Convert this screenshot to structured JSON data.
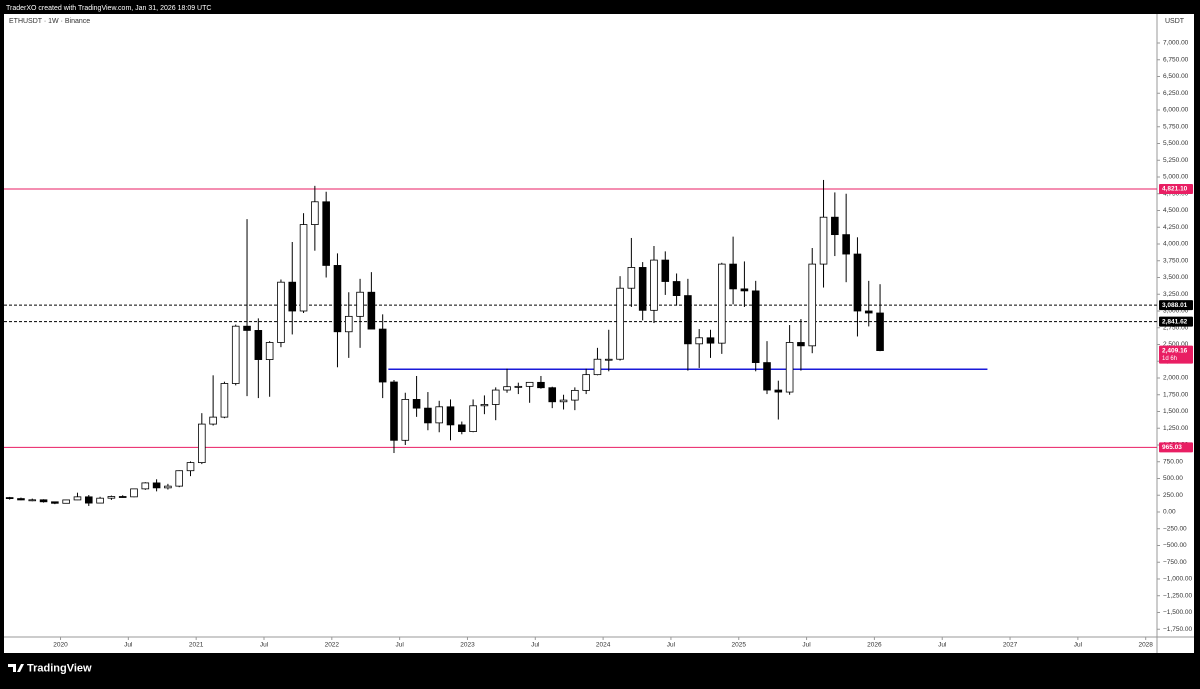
{
  "header": "TraderXO created with TradingView.com, Jan 31, 2026 18:09 UTC",
  "brand": "TradingView",
  "chart_data": {
    "type": "candlestick",
    "title": "ETHUSDT · 1W · Binance",
    "currency": "USDT",
    "up_color": "#ffffff",
    "down_color": "#000000",
    "wick_color": "#000000",
    "xlim": [
      "2019-08",
      "2028-02"
    ],
    "xticks": [
      {
        "value": "2020-01",
        "label": "2020"
      },
      {
        "value": "2020-07",
        "label": "Jul"
      },
      {
        "value": "2021-01",
        "label": "2021"
      },
      {
        "value": "2021-07",
        "label": "Jul"
      },
      {
        "value": "2022-01",
        "label": "2022"
      },
      {
        "value": "2022-07",
        "label": "Jul"
      },
      {
        "value": "2023-01",
        "label": "2023"
      },
      {
        "value": "2023-07",
        "label": "Jul"
      },
      {
        "value": "2024-01",
        "label": "2024"
      },
      {
        "value": "2024-07",
        "label": "Jul"
      },
      {
        "value": "2025-01",
        "label": "2025"
      },
      {
        "value": "2025-07",
        "label": "Jul"
      },
      {
        "value": "2026-01",
        "label": "2026"
      },
      {
        "value": "2026-07",
        "label": "Jul"
      },
      {
        "value": "2027-01",
        "label": "2027"
      },
      {
        "value": "2027-07",
        "label": "Jul"
      },
      {
        "value": "2028-01",
        "label": "2028"
      }
    ],
    "ylim": [
      -1866,
      7433
    ],
    "yticks": [
      {
        "value": 7000,
        "label": "7,000.00"
      },
      {
        "value": 6750,
        "label": "6,750.00"
      },
      {
        "value": 6500,
        "label": "6,500.00"
      },
      {
        "value": 6250,
        "label": "6,250.00"
      },
      {
        "value": 6000,
        "label": "6,000.00"
      },
      {
        "value": 5750,
        "label": "5,750.00"
      },
      {
        "value": 5500,
        "label": "5,500.00"
      },
      {
        "value": 5250,
        "label": "5,250.00"
      },
      {
        "value": 5000,
        "label": "5,000.00"
      },
      {
        "value": 4750,
        "label": "4,750.00"
      },
      {
        "value": 4500,
        "label": "4,500.00"
      },
      {
        "value": 4250,
        "label": "4,250.00"
      },
      {
        "value": 4000,
        "label": "4,000.00"
      },
      {
        "value": 3750,
        "label": "3,750.00"
      },
      {
        "value": 3500,
        "label": "3,500.00"
      },
      {
        "value": 3250,
        "label": "3,250.00"
      },
      {
        "value": 3000,
        "label": "3,000.00"
      },
      {
        "value": 2750,
        "label": "2,750.00"
      },
      {
        "value": 2500,
        "label": "2,500.00"
      },
      {
        "value": 2250,
        "label": "2,250.00"
      },
      {
        "value": 2000,
        "label": "2,000.00"
      },
      {
        "value": 1750,
        "label": "1,750.00"
      },
      {
        "value": 1500,
        "label": "1,500.00"
      },
      {
        "value": 1250,
        "label": "1,250.00"
      },
      {
        "value": 1000,
        "label": "1,000.00"
      },
      {
        "value": 750,
        "label": "750.00"
      },
      {
        "value": 500,
        "label": "500.00"
      },
      {
        "value": 250,
        "label": "250.00"
      },
      {
        "value": 0,
        "label": "0.00"
      },
      {
        "value": -250,
        "label": "−250.00"
      },
      {
        "value": -500,
        "label": "−500.00"
      },
      {
        "value": -750,
        "label": "−750.00"
      },
      {
        "value": -1000,
        "label": "−1,000.00"
      },
      {
        "value": -1250,
        "label": "−1,250.00"
      },
      {
        "value": -1500,
        "label": "−1,500.00"
      },
      {
        "value": -1750,
        "label": "−1,750.00"
      }
    ],
    "x": [
      "2019-08",
      "2019-09",
      "2019-10",
      "2019-11",
      "2019-12",
      "2020-01",
      "2020-02",
      "2020-03",
      "2020-04",
      "2020-05",
      "2020-06",
      "2020-07",
      "2020-08",
      "2020-09",
      "2020-10",
      "2020-11",
      "2020-12",
      "2021-01",
      "2021-02",
      "2021-03",
      "2021-04",
      "2021-05",
      "2021-06",
      "2021-07",
      "2021-08",
      "2021-09",
      "2021-10",
      "2021-11",
      "2021-12",
      "2022-01",
      "2022-02",
      "2022-03",
      "2022-04",
      "2022-05",
      "2022-06",
      "2022-07",
      "2022-08",
      "2022-09",
      "2022-10",
      "2022-11",
      "2022-12",
      "2023-01",
      "2023-02",
      "2023-03",
      "2023-04",
      "2023-05",
      "2023-06",
      "2023-07",
      "2023-08",
      "2023-09",
      "2023-10",
      "2023-11",
      "2023-12",
      "2024-01",
      "2024-02",
      "2024-03",
      "2024-04",
      "2024-05",
      "2024-06",
      "2024-07",
      "2024-08",
      "2024-09",
      "2024-10",
      "2024-11",
      "2024-12",
      "2025-01",
      "2025-02",
      "2025-03",
      "2025-04",
      "2025-05",
      "2025-06",
      "2025-07",
      "2025-08",
      "2025-09",
      "2025-10",
      "2025-11",
      "2025-12",
      "2026-01"
    ],
    "open": [
      215,
      200,
      180,
      182,
      152,
      130,
      180,
      226,
      133,
      206,
      231,
      226,
      345,
      434,
      360,
      386,
      616,
      737,
      1312,
      1416,
      1918,
      2773,
      2710,
      2275,
      2530,
      3430,
      3000,
      4290,
      4630,
      3680,
      2690,
      2920,
      3280,
      2730,
      1940,
      1070,
      1680,
      1550,
      1330,
      1570,
      1300,
      1200,
      1585,
      1605,
      1820,
      1870,
      1875,
      1935,
      1855,
      1645,
      1670,
      1815,
      2050,
      2280,
      2280,
      3340,
      3650,
      3010,
      3760,
      3440,
      3230,
      2510,
      2600,
      2520,
      3700,
      3330,
      3300,
      2230,
      1820,
      1790,
      2530,
      2480,
      3700,
      4400,
      4140,
      3850,
      3000,
      2970
    ],
    "high": [
      225,
      215,
      200,
      190,
      155,
      185,
      288,
      253,
      227,
      245,
      250,
      350,
      445,
      488,
      420,
      622,
      755,
      1475,
      2040,
      1945,
      2797,
      4372,
      2890,
      2550,
      3470,
      4030,
      4460,
      4868,
      4780,
      3860,
      3280,
      3480,
      3580,
      2950,
      1970,
      1780,
      2030,
      1790,
      1660,
      1680,
      1350,
      1680,
      1740,
      1860,
      2140,
      1930,
      1930,
      2030,
      1870,
      1750,
      1860,
      2140,
      2450,
      2720,
      3520,
      4090,
      3730,
      3970,
      3890,
      3560,
      3480,
      2730,
      2720,
      3720,
      4110,
      3740,
      3450,
      2550,
      1960,
      2790,
      2880,
      3940,
      4956,
      4770,
      4750,
      4100,
      3450,
      3400
    ],
    "low": [
      185,
      175,
      160,
      140,
      117,
      126,
      178,
      90,
      130,
      180,
      215,
      220,
      330,
      308,
      335,
      370,
      535,
      715,
      1290,
      1400,
      1890,
      1730,
      1700,
      1720,
      2460,
      2650,
      2970,
      3900,
      3500,
      2160,
      2300,
      2450,
      2790,
      1700,
      880,
      1000,
      1420,
      1220,
      1190,
      1070,
      1160,
      1190,
      1460,
      1370,
      1780,
      1760,
      1630,
      1840,
      1550,
      1530,
      1520,
      1760,
      2040,
      2100,
      2260,
      3060,
      2860,
      2820,
      3240,
      3080,
      2110,
      2150,
      2300,
      2360,
      3100,
      3060,
      2100,
      1760,
      1380,
      1750,
      2110,
      2370,
      3350,
      3820,
      3430,
      2620,
      2770,
      2400
    ],
    "close": [
      200,
      180,
      182,
      152,
      130,
      180,
      226,
      133,
      206,
      231,
      226,
      345,
      434,
      360,
      386,
      616,
      737,
      1312,
      1416,
      1918,
      2773,
      2710,
      2275,
      2530,
      3430,
      3000,
      4290,
      4630,
      3680,
      2690,
      2920,
      3280,
      2730,
      1940,
      1070,
      1680,
      1550,
      1330,
      1570,
      1300,
      1200,
      1585,
      1605,
      1820,
      1870,
      1875,
      1935,
      1855,
      1645,
      1670,
      1815,
      2050,
      2280,
      2280,
      3340,
      3650,
      3010,
      3760,
      3440,
      3230,
      2510,
      2600,
      2520,
      3700,
      3330,
      3300,
      2230,
      1820,
      1790,
      2530,
      2480,
      3700,
      4400,
      4140,
      3850,
      3000,
      2970,
      2409.16
    ],
    "last_label": "2,409.16",
    "countdown": "1d 6h",
    "last_color": "#e91e63",
    "levels": [
      {
        "value": 4821.1,
        "label": "4,821.10",
        "color": "#e91e63",
        "dashed": false
      },
      {
        "value": 3088.01,
        "label": "3,088.01",
        "color": "#000000",
        "dashed": true
      },
      {
        "value": 2841.62,
        "label": "2,841.62",
        "color": "#000000",
        "dashed": true
      },
      {
        "value": 965.03,
        "label": "965.03",
        "color": "#e91e63",
        "dashed": false
      }
    ],
    "support": {
      "value": 2130,
      "x": [
        "2022-06",
        "2026-11"
      ],
      "color": "#1a1ad9"
    }
  }
}
